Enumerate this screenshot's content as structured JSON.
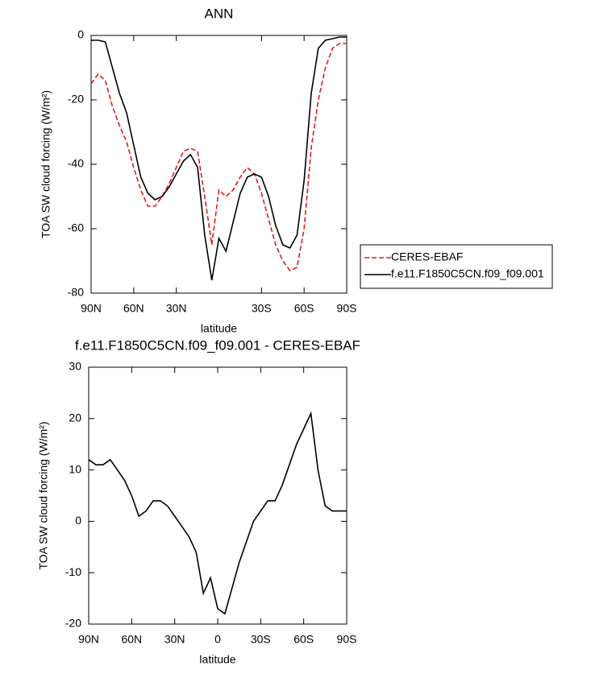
{
  "chart_data": [
    {
      "type": "line",
      "title": "ANN",
      "xlabel": "latitude",
      "ylabel": "TOA SW cloud forcing (W/m²)",
      "x": [
        90,
        85,
        80,
        75,
        70,
        65,
        60,
        55,
        50,
        45,
        40,
        35,
        30,
        25,
        20,
        15,
        10,
        5,
        0,
        -5,
        -10,
        -15,
        -20,
        -25,
        -30,
        -35,
        -40,
        -45,
        -50,
        -55,
        -60,
        -65,
        -70,
        -75,
        -80,
        -85,
        -90
      ],
      "series": [
        {
          "name": "CERES-EBAF",
          "color": "#e41a1c",
          "linestyle": "dashed",
          "values": [
            -15,
            -12,
            -14,
            -22,
            -28,
            -33,
            -41,
            -48,
            -53,
            -53,
            -50,
            -46,
            -41,
            -36,
            -35,
            -36,
            -50,
            -65,
            -48,
            -50,
            -48,
            -44,
            -41,
            -43,
            -49,
            -57,
            -65,
            -70,
            -73,
            -72,
            -60,
            -35,
            -20,
            -10,
            -4,
            -2.5,
            -2.5
          ]
        },
        {
          "name": "f.e11.F1850C5CN.f09_f09.001",
          "color": "#000000",
          "linestyle": "solid",
          "values": [
            -1.5,
            -1.5,
            -2,
            -10,
            -18,
            -24,
            -34,
            -44,
            -49,
            -51,
            -50,
            -47,
            -43,
            -39,
            -37,
            -41,
            -62,
            -76,
            -63,
            -67,
            -58,
            -49,
            -44,
            -43,
            -44,
            -50,
            -59,
            -65,
            -66,
            -62,
            -45,
            -18,
            -4,
            -1.5,
            -1,
            -0.5,
            -0.5
          ]
        }
      ],
      "xlim": [
        90,
        -90
      ],
      "xticks": [
        {
          "value": 90,
          "label": "90N"
        },
        {
          "value": 60,
          "label": "60N"
        },
        {
          "value": 30,
          "label": "30N"
        },
        {
          "value": -30,
          "label": "30S"
        },
        {
          "value": -60,
          "label": "60S"
        },
        {
          "value": -90,
          "label": "90S"
        }
      ],
      "ylim": [
        -80,
        0
      ],
      "yticks": [
        -80,
        -60,
        -40,
        -20,
        0
      ],
      "legend": "right"
    },
    {
      "type": "line",
      "title": "f.e11.F1850C5CN.f09_f09.001 - CERES-EBAF",
      "xlabel": "latitude",
      "ylabel": "TOA SW cloud forcing (W/m²)",
      "x": [
        90,
        85,
        80,
        75,
        70,
        65,
        60,
        55,
        50,
        45,
        40,
        35,
        30,
        25,
        20,
        15,
        10,
        5,
        0,
        -5,
        -10,
        -15,
        -20,
        -25,
        -30,
        -35,
        -40,
        -45,
        -50,
        -55,
        -60,
        -65,
        -70,
        -75,
        -80,
        -85,
        -90
      ],
      "series": [
        {
          "color": "#000000",
          "linestyle": "solid",
          "values": [
            12,
            11,
            11,
            12,
            10,
            8,
            5,
            1,
            2,
            4,
            4,
            3,
            1,
            -1,
            -3,
            -6,
            -14,
            -11,
            -17,
            -18,
            -13,
            -8,
            -4,
            0,
            2,
            4,
            4,
            7,
            11,
            15,
            18,
            21,
            10,
            3,
            2,
            2,
            2
          ]
        }
      ],
      "xlim": [
        90,
        -90
      ],
      "xticks": [
        {
          "value": 90,
          "label": "90N"
        },
        {
          "value": 60,
          "label": "60N"
        },
        {
          "value": 30,
          "label": "30N"
        },
        0,
        {
          "value": -30,
          "label": "30S"
        },
        {
          "value": -60,
          "label": "60S"
        },
        {
          "value": -90,
          "label": "90S"
        }
      ],
      "ylim": [
        -20,
        30
      ],
      "yticks": [
        -20,
        -10,
        0,
        10,
        20,
        30
      ]
    }
  ]
}
